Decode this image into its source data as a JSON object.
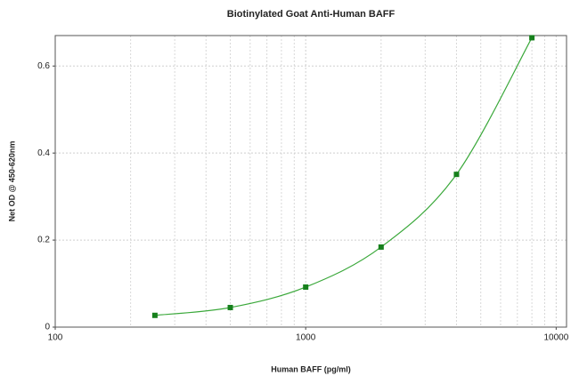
{
  "chart_data": {
    "type": "scatter",
    "title": "Biotinylated Goat Anti-Human BAFF",
    "x_label": "Human BAFF (pg/ml)",
    "y_label": "Net OD @ 450-620nm",
    "x": [
      250,
      500,
      1000,
      2000,
      4000,
      8000
    ],
    "values": [
      0.027,
      0.045,
      0.092,
      0.184,
      0.351,
      0.665
    ],
    "color": "#16801c",
    "line_color": "#3aa83a",
    "fit_line": true,
    "xlog": true,
    "xlim": [
      100,
      11000
    ],
    "xticks": [
      100,
      1000,
      10000
    ],
    "ylim": [
      0,
      0.67
    ],
    "yticks": [
      0,
      0.2,
      0.4,
      0.6
    ],
    "grid": true,
    "minor_grid": true
  }
}
